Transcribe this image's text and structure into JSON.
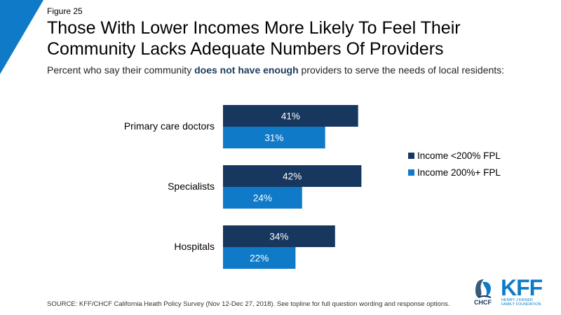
{
  "figure_label": "Figure 25",
  "title_line1": "Those With Lower Incomes More Likely To Feel Their",
  "title_line2": "Community Lacks Adequate Numbers Of Providers",
  "subtitle": {
    "pre": "Percent who say their community ",
    "bold": "does not have enough",
    "post": " providers to serve the needs of local residents:"
  },
  "colors": {
    "dark": "#17375e",
    "light": "#0f7ac8",
    "corner": "#0f7ac8"
  },
  "chart_data": {
    "type": "bar",
    "orientation": "horizontal",
    "categories": [
      "Primary care doctors",
      "Specialists",
      "Hospitals"
    ],
    "series": [
      {
        "name": "Income <200% FPL",
        "values": [
          41,
          42,
          34
        ],
        "labels": [
          "41%",
          "42%",
          "34%"
        ]
      },
      {
        "name": "Income 200%+ FPL",
        "values": [
          31,
          24,
          22
        ],
        "labels": [
          "31%",
          "24%",
          "22%"
        ]
      }
    ],
    "legend_position": "right"
  },
  "source": "SOURCE: KFF/CHCF California Heath Policy Survey (Nov 12-Dec 27, 2018). See topline for full question wording and response options.",
  "logos": {
    "chcf": "CHCF",
    "kff": "KFF",
    "kff_sub1": "HENRY J KAISER",
    "kff_sub2": "FAMILY FOUNDATION"
  }
}
